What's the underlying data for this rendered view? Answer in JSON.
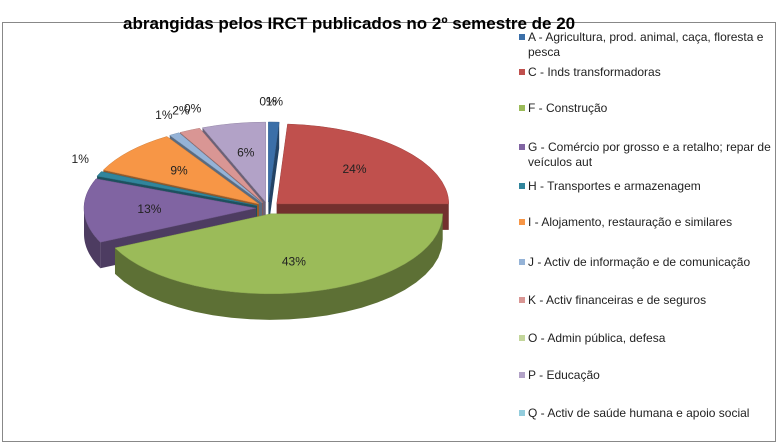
{
  "chart_data": {
    "type": "pie",
    "title": "abrangidas pelos IRCT publicados no 2º semestre de 20",
    "categories": [
      "A - Agricultura, prod. animal, caça, floresta e pesca",
      "C - Inds transformadoras",
      "F - Construção",
      "G - Comércio por grosso e a retalho; repar de veículos aut",
      "H - Transportes e armazenagem",
      "I - Alojamento, restauração e similares",
      "J - Activ de informação e de comunicação",
      "K - Activ financeiras e de seguros",
      "O - Admin pública, defesa",
      "P - Educação",
      "Q - Activ de saúde humana e apoio social"
    ],
    "values": [
      1,
      24,
      43,
      13,
      1,
      9,
      1,
      2,
      0,
      6,
      0
    ],
    "value_labels": [
      "1%",
      "24%",
      "43%",
      "13%",
      "1%",
      "9%",
      "1%",
      "2%",
      "0%",
      "6%",
      "0%"
    ],
    "colors": [
      "#3b6fa8",
      "#c0504d",
      "#9bbb59",
      "#8064a2",
      "#31859c",
      "#f79646",
      "#95b3d7",
      "#d99694",
      "#c3d69b",
      "#b2a2c7",
      "#93cddd"
    ],
    "legend": "right"
  }
}
